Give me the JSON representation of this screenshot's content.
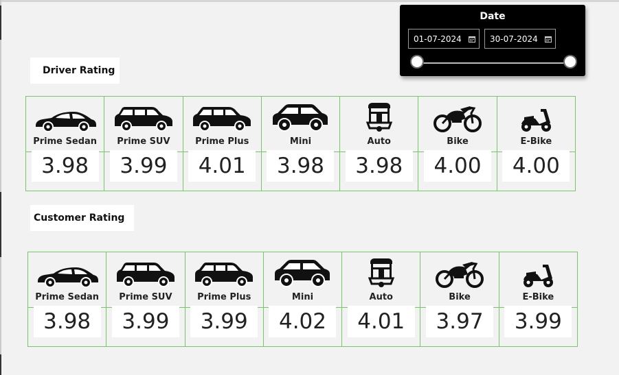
{
  "date_slicer": {
    "title": "Date",
    "start_date": "01-07-2024",
    "end_date": "30-07-2024"
  },
  "driver_rating": {
    "title": "Driver Rating",
    "items": [
      {
        "label": "Prime Sedan",
        "value": "3.98",
        "icon": "sedan-icon"
      },
      {
        "label": "Prime SUV",
        "value": "3.99",
        "icon": "suv-icon"
      },
      {
        "label": "Prime Plus",
        "value": "4.01",
        "icon": "hatchback-suv-icon"
      },
      {
        "label": "Mini",
        "value": "3.98",
        "icon": "mini-car-icon"
      },
      {
        "label": "Auto",
        "value": "3.98",
        "icon": "auto-rickshaw-icon"
      },
      {
        "label": "Bike",
        "value": "4.00",
        "icon": "motorbike-icon"
      },
      {
        "label": "E-Bike",
        "value": "4.00",
        "icon": "scooter-icon"
      }
    ]
  },
  "customer_rating": {
    "title": "Customer Rating",
    "items": [
      {
        "label": "Prime Sedan",
        "value": "3.98",
        "icon": "sedan-icon"
      },
      {
        "label": "Prime SUV",
        "value": "3.99",
        "icon": "suv-icon"
      },
      {
        "label": "Prime Plus",
        "value": "3.99",
        "icon": "hatchback-suv-icon"
      },
      {
        "label": "Mini",
        "value": "4.02",
        "icon": "mini-car-icon"
      },
      {
        "label": "Auto",
        "value": "4.01",
        "icon": "auto-rickshaw-icon"
      },
      {
        "label": "Bike",
        "value": "3.97",
        "icon": "motorbike-icon"
      },
      {
        "label": "E-Bike",
        "value": "3.99",
        "icon": "scooter-icon"
      }
    ]
  },
  "colors": {
    "background": "#f2f2f2",
    "grid_border": "#79c46a",
    "slicer_background": "#000000"
  }
}
